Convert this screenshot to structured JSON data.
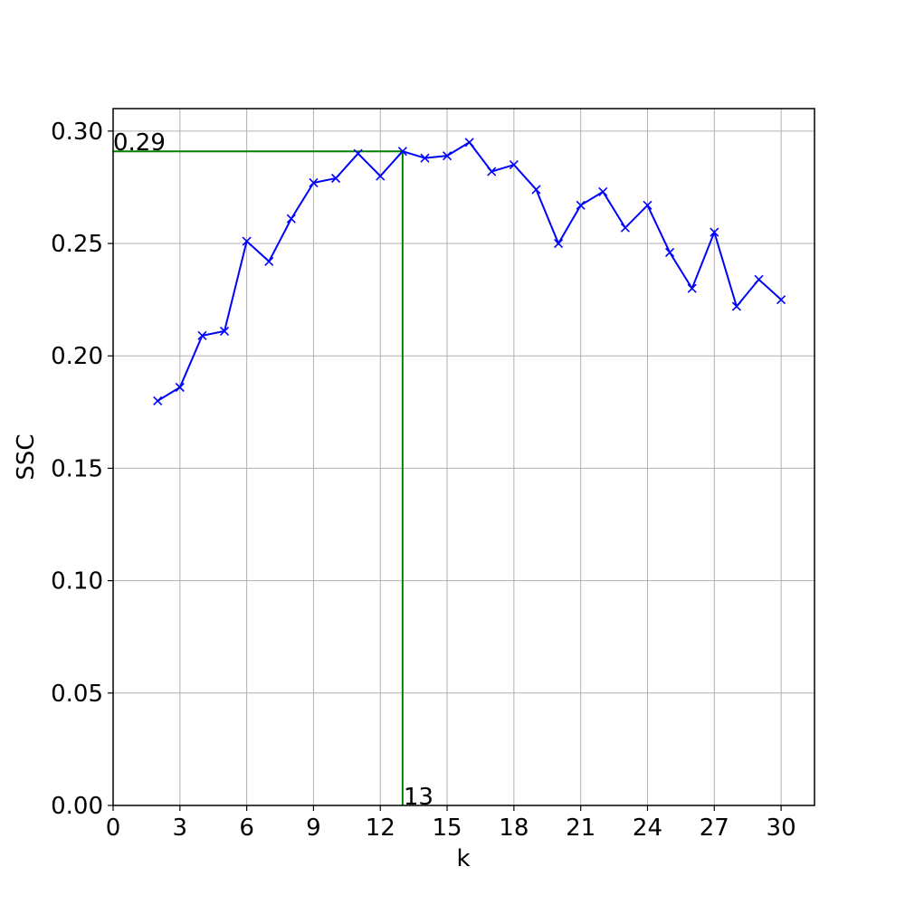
{
  "chart_data": {
    "type": "line",
    "title": "",
    "xlabel": "k",
    "ylabel": "SSC",
    "xlim": [
      0,
      31.5
    ],
    "ylim": [
      0,
      0.31
    ],
    "xticks": [
      0,
      3,
      6,
      9,
      12,
      15,
      18,
      21,
      24,
      27,
      30
    ],
    "yticks": [
      0.0,
      0.05,
      0.1,
      0.15,
      0.2,
      0.25,
      0.3
    ],
    "xtick_labels": [
      "0",
      "3",
      "6",
      "9",
      "12",
      "15",
      "18",
      "21",
      "24",
      "27",
      "30"
    ],
    "ytick_labels": [
      "0.00",
      "0.05",
      "0.10",
      "0.15",
      "0.20",
      "0.25",
      "0.30"
    ],
    "grid": true,
    "line_color": "#0000ff",
    "marker": "x",
    "highlight_color": "#008000",
    "series": [
      {
        "x": [
          2,
          3,
          4,
          5,
          6,
          7,
          8,
          9,
          10,
          11,
          12,
          13,
          14,
          15,
          16,
          17,
          18,
          19,
          20,
          21,
          22,
          23,
          24,
          25,
          26,
          27,
          28,
          29,
          30
        ],
        "values": [
          0.18,
          0.186,
          0.209,
          0.211,
          0.251,
          0.242,
          0.261,
          0.277,
          0.279,
          0.29,
          0.28,
          0.291,
          0.288,
          0.289,
          0.295,
          0.282,
          0.285,
          0.274,
          0.25,
          0.267,
          0.273,
          0.257,
          0.267,
          0.246,
          0.23,
          0.255,
          0.222,
          0.234,
          0.225
        ]
      }
    ],
    "highlight": {
      "x": 13,
      "y": 0.291,
      "x_label": "13",
      "y_label": "0.29"
    }
  }
}
